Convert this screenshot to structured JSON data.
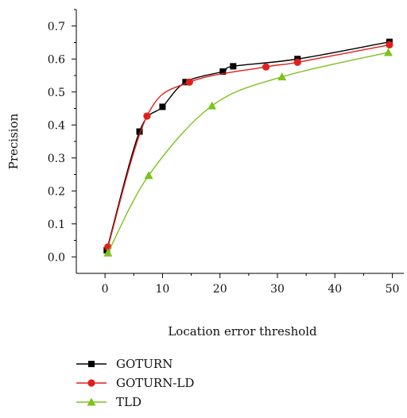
{
  "chart_data": {
    "type": "line",
    "title": "",
    "xlabel": "Location error threshold",
    "ylabel": "Precision",
    "xlim": [
      -5,
      52
    ],
    "ylim": [
      -0.05,
      0.75
    ],
    "x_ticks": [
      0,
      10,
      20,
      30,
      40,
      50
    ],
    "y_ticks": [
      0.0,
      0.1,
      0.2,
      0.3,
      0.4,
      0.5,
      0.6,
      0.7
    ],
    "x_tick_labels": [
      "0",
      "10",
      "20",
      "30",
      "40",
      "50"
    ],
    "y_tick_labels": [
      "0.0",
      "0.1",
      "0.2",
      "0.3",
      "0.4",
      "0.5",
      "0.6",
      "0.7"
    ],
    "grid": false,
    "legend_position": "below",
    "series": [
      {
        "name": "GOTURN",
        "color": "#000000",
        "marker": "square",
        "points": [
          [
            0.3,
            0.02
          ],
          [
            6,
            0.38
          ],
          [
            10,
            0.455
          ],
          [
            14,
            0.53
          ],
          [
            20.5,
            0.562
          ],
          [
            22.3,
            0.578
          ],
          [
            33.5,
            0.6
          ],
          [
            49.5,
            0.652
          ]
        ]
      },
      {
        "name": "GOTURN-LD",
        "color": "#e0201b",
        "marker": "circle",
        "points": [
          [
            0.5,
            0.03
          ],
          [
            7.3,
            0.427
          ],
          [
            14.7,
            0.53
          ],
          [
            28,
            0.576
          ],
          [
            33.5,
            0.59
          ],
          [
            49.5,
            0.643
          ]
        ]
      },
      {
        "name": "TLD",
        "color": "#7dc21e",
        "marker": "triangle",
        "points": [
          [
            0.5,
            0.012
          ],
          [
            7.6,
            0.247
          ],
          [
            18.6,
            0.458
          ],
          [
            30.8,
            0.546
          ],
          [
            49.3,
            0.62
          ]
        ]
      }
    ]
  }
}
